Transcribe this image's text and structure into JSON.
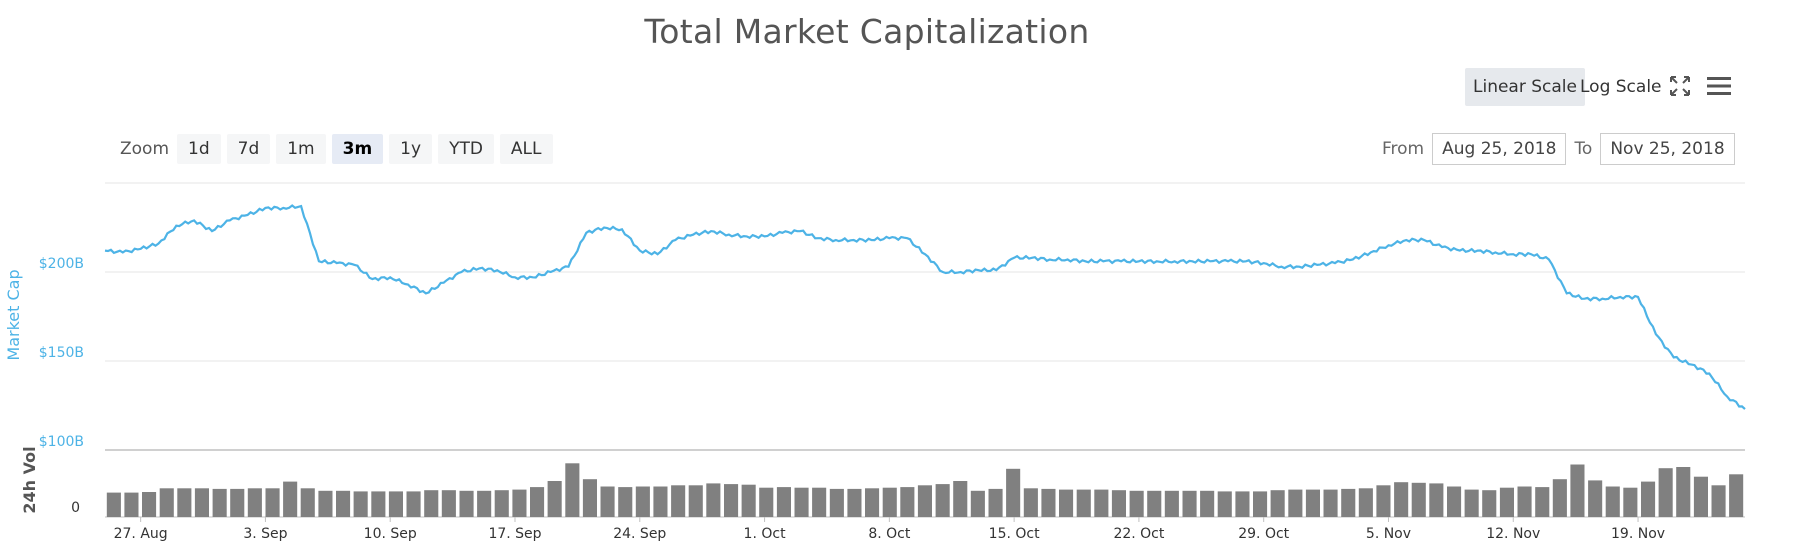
{
  "header": {
    "title": "Total Market Capitalization"
  },
  "controls": {
    "scale_options": [
      "Linear Scale",
      "Log Scale"
    ],
    "active_scale": "Linear Scale",
    "icons": [
      "expand-icon",
      "menu-icon"
    ]
  },
  "zoom": {
    "label": "Zoom",
    "options": [
      "1d",
      "7d",
      "1m",
      "3m",
      "1y",
      "YTD",
      "ALL"
    ],
    "active": "3m"
  },
  "range": {
    "from_label": "From",
    "from_value": "Aug 25, 2018",
    "to_label": "To",
    "to_value": "Nov 25, 2018"
  },
  "colors": {
    "line": "#4db3e6",
    "volume": "#808080",
    "grid": "#e6e6e6"
  },
  "chart_data": [
    {
      "type": "line",
      "ylabel": "Market Cap",
      "ylim": [
        100,
        250
      ],
      "y_ticks": [
        "$100B",
        "$150B",
        "$200B"
      ],
      "x_tick_labels": [
        "27. Aug",
        "3. Sep",
        "10. Sep",
        "17. Sep",
        "24. Sep",
        "1. Oct",
        "8. Oct",
        "15. Oct",
        "22. Oct",
        "29. Oct",
        "5. Nov",
        "12. Nov",
        "19. Nov"
      ],
      "x_range": [
        "2018-08-25",
        "2018-11-25"
      ],
      "grid": true,
      "series": [
        {
          "x": [
            "2018-08-25",
            "2018-08-26",
            "2018-08-27",
            "2018-08-28",
            "2018-08-29",
            "2018-08-30",
            "2018-08-31",
            "2018-09-01",
            "2018-09-02",
            "2018-09-03",
            "2018-09-04",
            "2018-09-05",
            "2018-09-06",
            "2018-09-07",
            "2018-09-08",
            "2018-09-09",
            "2018-09-10",
            "2018-09-11",
            "2018-09-12",
            "2018-09-13",
            "2018-09-14",
            "2018-09-15",
            "2018-09-16",
            "2018-09-17",
            "2018-09-18",
            "2018-09-19",
            "2018-09-20",
            "2018-09-21",
            "2018-09-22",
            "2018-09-23",
            "2018-09-24",
            "2018-09-25",
            "2018-09-26",
            "2018-09-27",
            "2018-09-28",
            "2018-09-29",
            "2018-09-30",
            "2018-10-01",
            "2018-10-02",
            "2018-10-03",
            "2018-10-04",
            "2018-10-05",
            "2018-10-06",
            "2018-10-07",
            "2018-10-08",
            "2018-10-09",
            "2018-10-10",
            "2018-10-11",
            "2018-10-12",
            "2018-10-13",
            "2018-10-14",
            "2018-10-15",
            "2018-10-16",
            "2018-10-17",
            "2018-10-18",
            "2018-10-19",
            "2018-10-20",
            "2018-10-21",
            "2018-10-22",
            "2018-10-23",
            "2018-10-24",
            "2018-10-25",
            "2018-10-26",
            "2018-10-27",
            "2018-10-28",
            "2018-10-29",
            "2018-10-30",
            "2018-10-31",
            "2018-11-01",
            "2018-11-02",
            "2018-11-03",
            "2018-11-04",
            "2018-11-05",
            "2018-11-06",
            "2018-11-07",
            "2018-11-08",
            "2018-11-09",
            "2018-11-10",
            "2018-11-11",
            "2018-11-12",
            "2018-11-13",
            "2018-11-14",
            "2018-11-15",
            "2018-11-16",
            "2018-11-17",
            "2018-11-18",
            "2018-11-19",
            "2018-11-20",
            "2018-11-21",
            "2018-11-22",
            "2018-11-23",
            "2018-11-24",
            "2018-11-25"
          ],
          "y": [
            212,
            211,
            213,
            216,
            226,
            229,
            223,
            229,
            232,
            236,
            236,
            237,
            206,
            205,
            204,
            196,
            197,
            193,
            188,
            194,
            200,
            202,
            201,
            197,
            197,
            200,
            203,
            222,
            225,
            224,
            212,
            210,
            218,
            221,
            223,
            221,
            220,
            220,
            222,
            223,
            219,
            218,
            218,
            218,
            219,
            219,
            210,
            200,
            200,
            201,
            201,
            208,
            208,
            207,
            207,
            206,
            206,
            206,
            206,
            206,
            206,
            206,
            206,
            206,
            206,
            205,
            203,
            203,
            204,
            205,
            207,
            211,
            215,
            218,
            218,
            214,
            212,
            212,
            211,
            210,
            210,
            207,
            188,
            185,
            185,
            186,
            186,
            165,
            152,
            148,
            143,
            130,
            123
          ]
        }
      ]
    },
    {
      "type": "bar",
      "ylabel": "24h Vol",
      "y_ticks": [
        "0"
      ],
      "ylim": [
        0,
        100
      ],
      "x_range": [
        "2018-08-25",
        "2018-11-25"
      ],
      "series": [
        {
          "values": [
            40,
            40,
            41,
            47,
            47,
            47,
            46,
            46,
            47,
            47,
            58,
            47,
            43,
            43,
            42,
            42,
            42,
            42,
            44,
            44,
            43,
            43,
            44,
            45,
            49,
            59,
            88,
            62,
            50,
            49,
            50,
            50,
            52,
            52,
            55,
            54,
            53,
            48,
            49,
            48,
            48,
            46,
            46,
            47,
            48,
            49,
            52,
            54,
            59,
            43,
            46,
            79,
            47,
            46,
            45,
            45,
            45,
            44,
            43,
            43,
            43,
            43,
            43,
            42,
            42,
            42,
            44,
            45,
            45,
            45,
            46,
            47,
            52,
            57,
            56,
            55,
            50,
            45,
            44,
            48,
            50,
            49,
            62,
            86,
            60,
            50,
            48,
            58,
            80,
            82,
            66,
            52,
            70
          ]
        }
      ]
    }
  ]
}
